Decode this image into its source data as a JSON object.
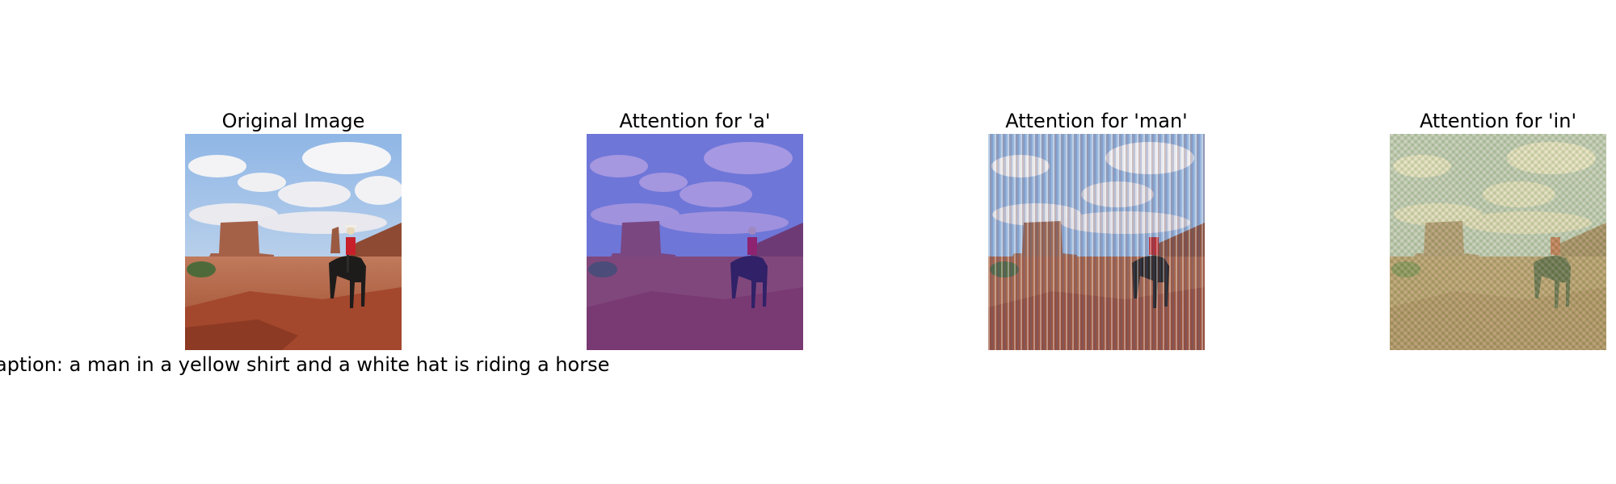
{
  "figure": {
    "panels": [
      {
        "title": "Original Image",
        "overlay": "none"
      },
      {
        "title": "Attention for 'a'",
        "overlay": "blue"
      },
      {
        "title": "Attention for 'man'",
        "overlay": "vertical-stripes"
      },
      {
        "title": "Attention for 'in'",
        "overlay": "checker-green"
      }
    ],
    "caption": "aption: a man in a yellow shirt and a white hat is riding a horse"
  },
  "colors": {
    "sky": "#a9c7ea",
    "cloud": "#f4f4f6",
    "mesa": "#a7634a",
    "ground": "#b5533b",
    "rider_shirt": "#c8202a",
    "horse": "#1f1d1c"
  }
}
